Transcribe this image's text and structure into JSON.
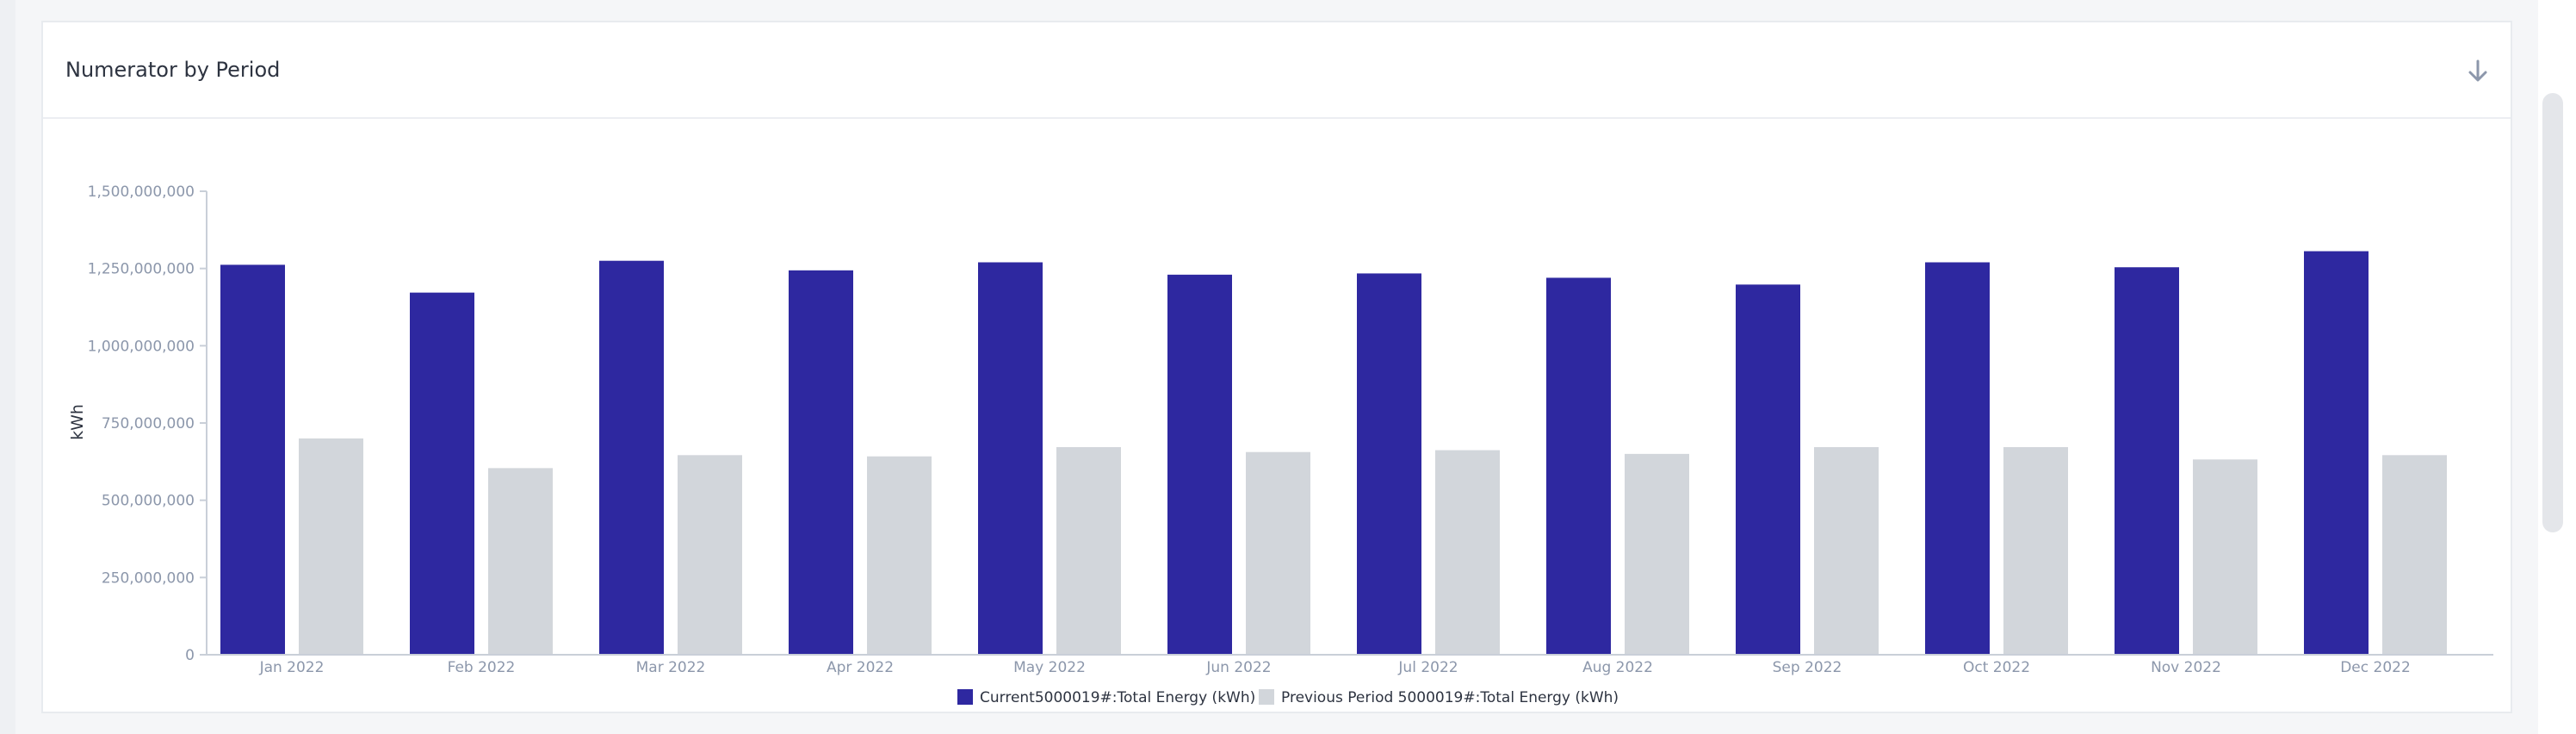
{
  "card": {
    "title": "Numerator by Period",
    "download_icon": "arrow-down-icon"
  },
  "colors": {
    "current": "#2e28a0",
    "previous": "#d2d6db",
    "axis_text": "#8c97ab",
    "axis_line": "#c9cfd8"
  },
  "chart_data": {
    "type": "bar",
    "title": "Numerator by Period",
    "xlabel": "",
    "ylabel": "kWh",
    "ylim": [
      0,
      1500000000
    ],
    "yticks": [
      0,
      250000000,
      500000000,
      750000000,
      1000000000,
      1250000000,
      1500000000
    ],
    "ytick_labels": [
      "0",
      "250,000,000",
      "500,000,000",
      "750,000,000",
      "1,000,000,000",
      "1,250,000,000",
      "1,500,000,000"
    ],
    "categories": [
      "Jan 2022",
      "Feb 2022",
      "Mar 2022",
      "Apr 2022",
      "May 2022",
      "Jun 2022",
      "Jul 2022",
      "Aug 2022",
      "Sep 2022",
      "Oct 2022",
      "Nov 2022",
      "Dec 2022"
    ],
    "series": [
      {
        "name": "Current5000019#:Total Energy (kWh)",
        "values": [
          1262000000,
          1172000000,
          1275000000,
          1244000000,
          1270000000,
          1230000000,
          1234000000,
          1220000000,
          1198000000,
          1270000000,
          1254000000,
          1306000000
        ]
      },
      {
        "name": "Previous Period 5000019#:Total Energy (kWh)",
        "values": [
          700000000,
          604000000,
          646000000,
          642000000,
          672000000,
          656000000,
          662000000,
          650000000,
          672000000,
          672000000,
          632000000,
          646000000
        ]
      }
    ],
    "legend_position": "bottom-center",
    "grid": false
  }
}
